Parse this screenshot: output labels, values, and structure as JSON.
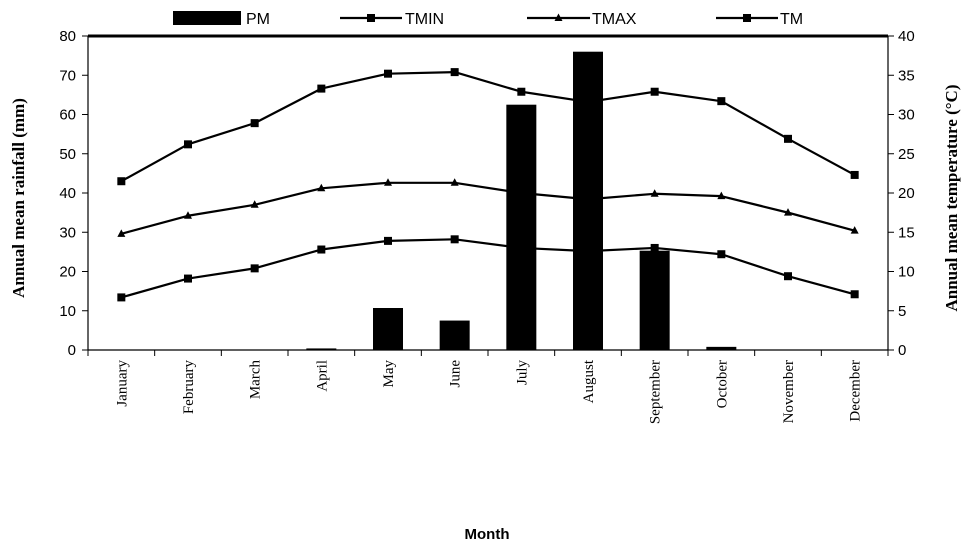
{
  "chart_data": {
    "type": "bar+line",
    "title": "",
    "xlabel": "Month",
    "ylabel_left": "Annual mean rainfall (mm)",
    "ylabel_right": "Annual mean temperature (°C)",
    "ylim_left": [
      0,
      80
    ],
    "ylim_right": [
      0,
      40
    ],
    "yticks_left": [
      "0",
      "10",
      "20",
      "30",
      "40",
      "50",
      "60",
      "70",
      "80"
    ],
    "yticks_right": [
      "0",
      "5",
      "10",
      "15",
      "20",
      "25",
      "30",
      "35",
      "40"
    ],
    "grid": false,
    "legend_position": "top",
    "categories": [
      "January",
      "February",
      "March",
      "April",
      "May",
      "June",
      "July",
      "August",
      "September",
      "October",
      "November",
      "December"
    ],
    "bars": {
      "name": "PM",
      "axis": "left",
      "color": "#000000",
      "values": [
        0,
        0,
        0,
        0.4,
        10.7,
        7.5,
        62.5,
        76,
        25.3,
        0.8,
        0,
        0
      ]
    },
    "series": [
      {
        "name": "TMIN",
        "axis": "right",
        "marker": "square",
        "values": [
          6.7,
          9.1,
          10.4,
          12.8,
          13.9,
          14.1,
          13.0,
          12.6,
          13.0,
          12.2,
          9.4,
          7.1
        ]
      },
      {
        "name": "TMAX",
        "axis": "right",
        "marker": "triangle",
        "values": [
          14.8,
          17.1,
          18.5,
          20.6,
          21.3,
          21.3,
          20.0,
          19.2,
          19.9,
          19.6,
          17.5,
          15.2
        ]
      },
      {
        "name": "TM",
        "axis": "right",
        "marker": "square",
        "values": [
          21.5,
          26.2,
          28.9,
          33.3,
          35.2,
          35.4,
          32.9,
          31.6,
          32.9,
          31.7,
          26.9,
          22.3
        ]
      }
    ]
  }
}
